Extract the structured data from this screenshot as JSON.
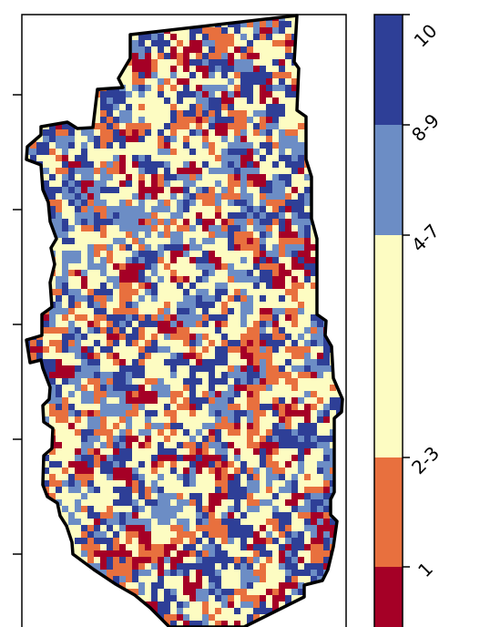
{
  "map": {
    "legend": {
      "classes": [
        {
          "label": "1",
          "color": "#a50026"
        },
        {
          "label": "2-3",
          "color": "#e8703e"
        },
        {
          "label": "4-7",
          "color": "#fdfcc2"
        },
        {
          "label": "8-9",
          "color": "#6c8dc5"
        },
        {
          "label": "10",
          "color": "#2e3f97"
        }
      ]
    },
    "outline_color": "#000000"
  }
}
